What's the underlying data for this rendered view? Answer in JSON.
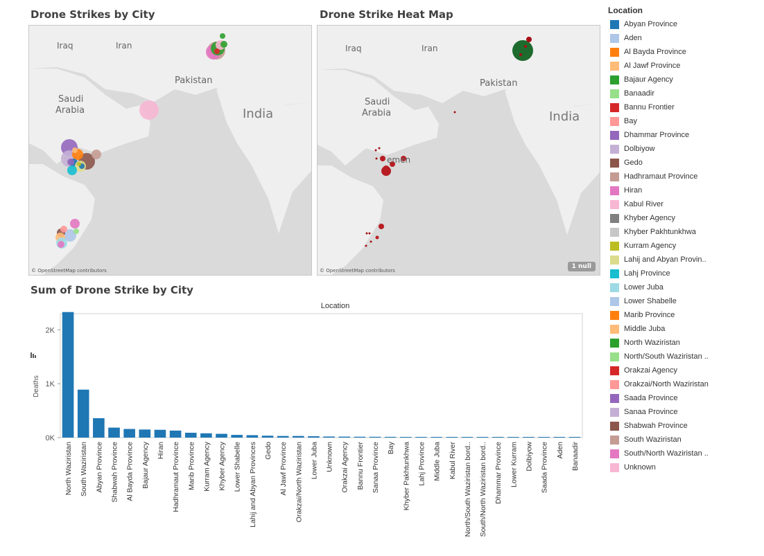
{
  "map1": {
    "title": "Drone Strikes by City",
    "credit": "© OpenStreetMap contributors"
  },
  "map2": {
    "title": "Drone Strike Heat Map",
    "credit": "© OpenStreetMap contributors",
    "null_badge": "1 null"
  },
  "map_labels": {
    "iraq": "Iraq",
    "iran": "Iran",
    "pakistan": "Pakistan",
    "saudi1": "Saudi",
    "saudi2": "Arabia",
    "india": "India",
    "yemen_fragment": "emen"
  },
  "legend": {
    "title": "Location",
    "items": [
      {
        "label": "Abyan Province",
        "color": "#1f77b4"
      },
      {
        "label": "Aden",
        "color": "#aec7e8"
      },
      {
        "label": "Al Bayda Province",
        "color": "#ff7f0e"
      },
      {
        "label": "Al Jawf Province",
        "color": "#ffbb78"
      },
      {
        "label": "Bajaur Agency",
        "color": "#2ca02c"
      },
      {
        "label": "Banaadir",
        "color": "#98df8a"
      },
      {
        "label": "Bannu Frontier",
        "color": "#d62728"
      },
      {
        "label": "Bay",
        "color": "#ff9896"
      },
      {
        "label": "Dhammar Province",
        "color": "#9467bd"
      },
      {
        "label": "Dolbiyow",
        "color": "#c5b0d5"
      },
      {
        "label": "Gedo",
        "color": "#8c564b"
      },
      {
        "label": "Hadhramaut Province",
        "color": "#c49c94"
      },
      {
        "label": "Hiran",
        "color": "#e377c2"
      },
      {
        "label": "Kabul River",
        "color": "#f7b6d2"
      },
      {
        "label": "Khyber Agency",
        "color": "#7f7f7f"
      },
      {
        "label": "Khyber Pakhtunkhwa",
        "color": "#c7c7c7"
      },
      {
        "label": "Kurram Agency",
        "color": "#bcbd22"
      },
      {
        "label": "Lahij and Abyan Provin..",
        "color": "#dbdb8d"
      },
      {
        "label": "Lahj Province",
        "color": "#17becf"
      },
      {
        "label": "Lower Juba",
        "color": "#9edae5"
      },
      {
        "label": "Lower Shabelle",
        "color": "#aec7e8"
      },
      {
        "label": "Marib Province",
        "color": "#ff7f0e"
      },
      {
        "label": "Middle Juba",
        "color": "#ffbb78"
      },
      {
        "label": "North Waziristan",
        "color": "#2ca02c"
      },
      {
        "label": "North/South Waziristan ..",
        "color": "#98df8a"
      },
      {
        "label": "Orakzai Agency",
        "color": "#d62728"
      },
      {
        "label": "Orakzai/North Waziristan",
        "color": "#ff9896"
      },
      {
        "label": "Saada Province",
        "color": "#9467bd"
      },
      {
        "label": "Sanaa Province",
        "color": "#c5b0d5"
      },
      {
        "label": "Shabwah Province",
        "color": "#8c564b"
      },
      {
        "label": "South Waziristan",
        "color": "#c49c94"
      },
      {
        "label": "South/North Waziristan ..",
        "color": "#e377c2"
      },
      {
        "label": "Unknown",
        "color": "#f7b6d2"
      }
    ]
  },
  "chart_data": {
    "type": "bar",
    "title": "Sum of Drone Strike by City",
    "column_header": "Location",
    "ylabel": "Deaths",
    "ylim": [
      0,
      2300
    ],
    "yticks": [
      {
        "value": 0,
        "label": "0K"
      },
      {
        "value": 1000,
        "label": "1K"
      },
      {
        "value": 2000,
        "label": "2K"
      }
    ],
    "bar_color": "#1f77b4",
    "categories": [
      "North Waziristan",
      "South Waziristan",
      "Abyan Province",
      "Shabwah Province",
      "Al Bayda Province",
      "Bajaur Agency",
      "Hiran",
      "Hadhramaut Province",
      "Marib Province",
      "Kurram Agency",
      "Khyber Agency",
      "Lower Shabelle",
      "Lahij and Abyan Provinces",
      "Gedo",
      "Al Jawf Province",
      "Orakzai/North Waziristan",
      "Lower Juba",
      "Unknown",
      "Orakzai Agency",
      "Bannu Frontier",
      "Sanaa Province",
      "Bay",
      "Khyber Pakhtunkhwa",
      "Lahj Province",
      "Middle Juba",
      "Kabul River",
      "North/South Waziristan bord..",
      "South/North Waziristan bord..",
      "Dhammar Province",
      "Lower Kurram",
      "Dolbiyow",
      "Saada Province",
      "Aden",
      "Banaadir"
    ],
    "values": [
      2330,
      890,
      360,
      185,
      160,
      150,
      145,
      130,
      90,
      80,
      70,
      50,
      45,
      35,
      30,
      30,
      25,
      20,
      18,
      16,
      15,
      14,
      13,
      12,
      12,
      10,
      10,
      8,
      5,
      4,
      3,
      3,
      2,
      2
    ]
  }
}
